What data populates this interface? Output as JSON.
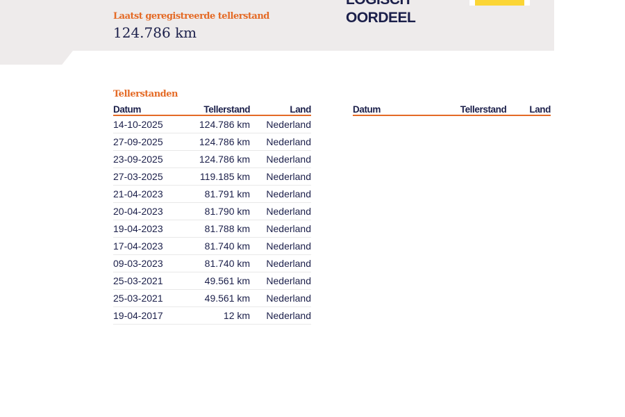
{
  "header": {
    "last_reading_label": "Laatst geregistreerde tellerstand",
    "last_reading_value": "124.786 km",
    "verdict_line1": "LOGISCH",
    "verdict_line2": "OORDEEL"
  },
  "readings": {
    "title": "Tellerstanden",
    "columns": [
      "Datum",
      "Tellerstand",
      "Land"
    ],
    "rows": [
      [
        "14-10-2025",
        "124.786 km",
        "Nederland"
      ],
      [
        "27-09-2025",
        "124.786 km",
        "Nederland"
      ],
      [
        "23-09-2025",
        "124.786 km",
        "Nederland"
      ],
      [
        "27-03-2025",
        "119.185 km",
        "Nederland"
      ],
      [
        "21-04-2023",
        "81.791 km",
        "Nederland"
      ],
      [
        "20-04-2023",
        "81.790 km",
        "Nederland"
      ],
      [
        "19-04-2023",
        "81.788 km",
        "Nederland"
      ],
      [
        "17-04-2023",
        "81.740 km",
        "Nederland"
      ],
      [
        "09-03-2023",
        "81.740 km",
        "Nederland"
      ],
      [
        "25-03-2021",
        "49.561 km",
        "Nederland"
      ],
      [
        "25-03-2021",
        "49.561 km",
        "Nederland"
      ],
      [
        "19-04-2017",
        "12 km",
        "Nederland"
      ]
    ]
  },
  "colors": {
    "accent": "#e46a25",
    "text": "#1b1f4a",
    "badge": "#fbd535",
    "band": "#eeebeb"
  }
}
